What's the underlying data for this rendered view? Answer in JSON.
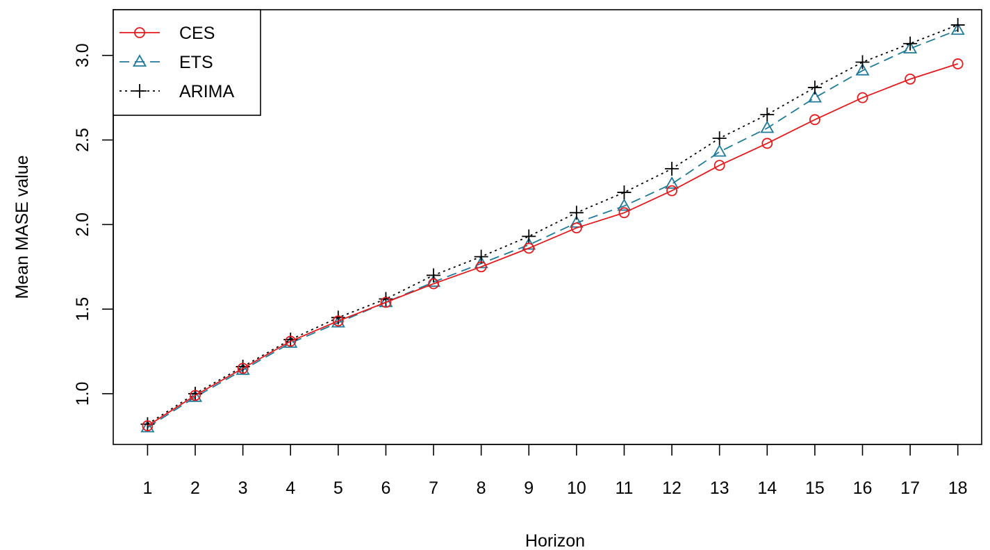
{
  "chart_data": {
    "type": "line",
    "title": "",
    "xlabel": "Horizon",
    "ylabel": "Mean MASE value",
    "x": [
      1,
      2,
      3,
      4,
      5,
      6,
      7,
      8,
      9,
      10,
      11,
      12,
      13,
      14,
      15,
      16,
      17,
      18
    ],
    "x_tick_labels": [
      "1",
      "2",
      "3",
      "4",
      "5",
      "6",
      "7",
      "8",
      "9",
      "10",
      "11",
      "12",
      "13",
      "14",
      "15",
      "16",
      "17",
      "18"
    ],
    "y_ticks": [
      1.0,
      1.5,
      2.0,
      2.5,
      3.0
    ],
    "y_tick_labels": [
      "1.0",
      "1.5",
      "2.0",
      "2.5",
      "3.0"
    ],
    "xlim": [
      0.28,
      18.5
    ],
    "ylim": [
      0.7,
      3.27
    ],
    "grid": false,
    "legend_position": "top-left",
    "series": [
      {
        "name": "CES",
        "color": "#e41a1c",
        "line_style": "solid",
        "marker": "circle",
        "values": [
          0.81,
          0.99,
          1.15,
          1.31,
          1.43,
          1.54,
          1.65,
          1.75,
          1.86,
          1.98,
          2.07,
          2.2,
          2.35,
          2.48,
          2.62,
          2.75,
          2.86,
          2.95
        ]
      },
      {
        "name": "ETS",
        "color": "#1f7a99",
        "line_style": "dashed",
        "marker": "triangle",
        "values": [
          0.8,
          0.98,
          1.14,
          1.3,
          1.42,
          1.54,
          1.66,
          1.77,
          1.88,
          2.01,
          2.11,
          2.24,
          2.43,
          2.57,
          2.75,
          2.91,
          3.04,
          3.15
        ]
      },
      {
        "name": "ARIMA",
        "color": "#000000",
        "line_style": "dotted",
        "marker": "plus",
        "values": [
          0.82,
          1.0,
          1.16,
          1.32,
          1.45,
          1.56,
          1.7,
          1.81,
          1.93,
          2.07,
          2.19,
          2.33,
          2.51,
          2.65,
          2.81,
          2.96,
          3.07,
          3.18
        ]
      }
    ]
  }
}
